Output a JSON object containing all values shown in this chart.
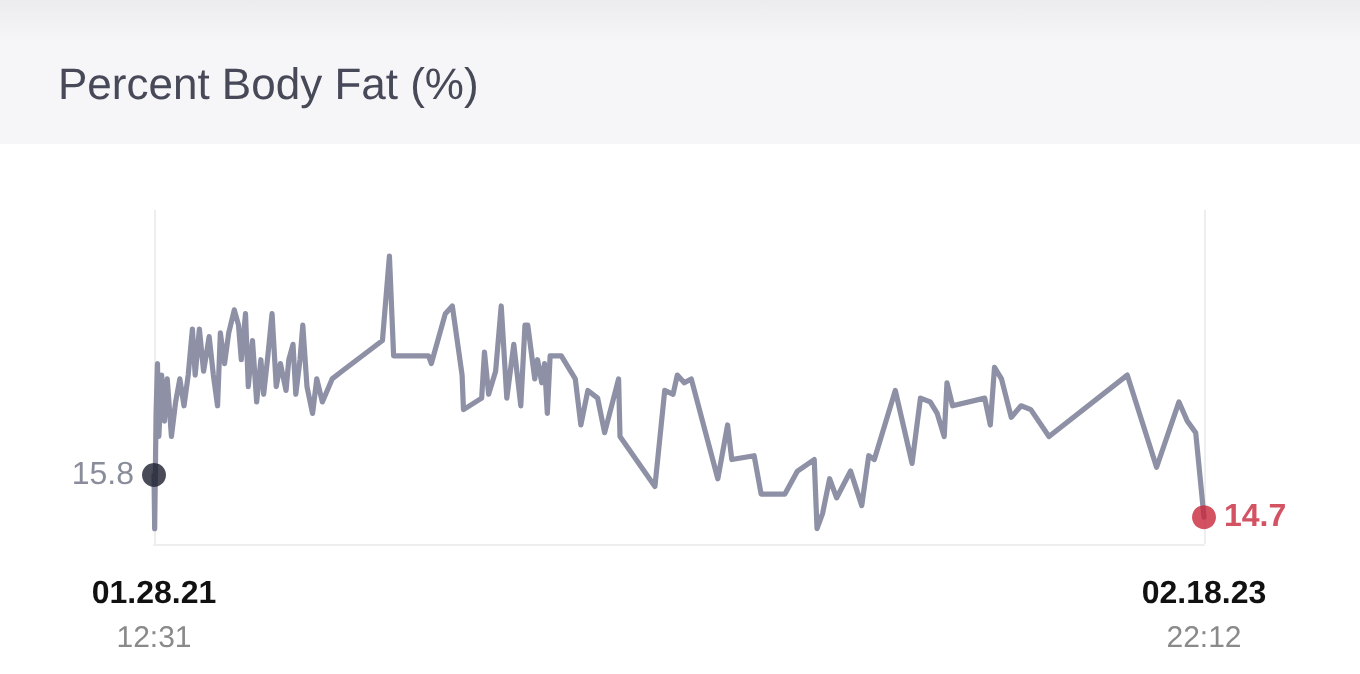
{
  "chart_data": {
    "type": "line",
    "title": "Percent Body Fat (%)",
    "x": [
      "2021-01-28T12:31",
      "2021-01-29",
      "2021-01-30",
      "2021-01-31",
      "2021-02-01",
      "2021-02-03",
      "2021-02-05",
      "2021-02-07",
      "2021-02-10",
      "2021-02-13",
      "2021-02-16",
      "2021-02-19",
      "2021-02-22",
      "2021-02-25",
      "2021-02-27",
      "2021-03-02",
      "2021-03-05",
      "2021-03-09",
      "2021-03-12",
      "2021-03-15",
      "2021-03-17",
      "2021-03-20",
      "2021-03-23",
      "2021-03-27",
      "2021-03-30",
      "2021-04-01",
      "2021-04-04",
      "2021-04-06",
      "2021-04-09",
      "2021-04-12",
      "2021-04-15",
      "2021-04-17",
      "2021-04-20",
      "2021-04-23",
      "2021-04-26",
      "2021-04-29",
      "2021-05-03",
      "2021-05-05",
      "2021-05-08",
      "2021-05-10",
      "2021-05-13",
      "2021-05-15",
      "2021-05-18",
      "2021-05-22",
      "2021-05-25",
      "2021-05-29",
      "2021-06-05",
      "2021-06-12",
      "2021-07-11",
      "2021-07-16",
      "2021-07-19",
      "2021-08-13",
      "2021-08-15",
      "2021-08-25",
      "2021-08-30",
      "2021-09-06",
      "2021-09-07",
      "2021-09-20",
      "2021-09-22",
      "2021-09-25",
      "2021-09-30",
      "2021-10-04",
      "2021-10-08",
      "2021-10-13",
      "2021-10-18",
      "2021-10-21",
      "2021-10-23",
      "2021-10-28",
      "2021-10-30",
      "2021-11-02",
      "2021-11-04",
      "2021-11-06",
      "2021-11-08",
      "2021-11-16",
      "2021-11-26",
      "2021-11-30",
      "2021-12-05",
      "2021-12-12",
      "2021-12-17",
      "2021-12-22",
      "2021-12-27",
      "2021-12-28",
      "2022-01-22",
      "2022-01-29",
      "2022-02-04",
      "2022-02-07",
      "2022-02-12",
      "2022-02-17",
      "2022-03-08",
      "2022-03-15",
      "2022-03-18",
      "2022-04-03",
      "2022-04-08",
      "2022-04-25",
      "2022-05-04",
      "2022-05-16",
      "2022-05-18",
      "2022-05-22",
      "2022-05-27",
      "2022-06-01",
      "2022-06-11",
      "2022-06-19",
      "2022-06-24",
      "2022-06-28",
      "2022-07-13",
      "2022-07-25",
      "2022-07-31",
      "2022-08-07",
      "2022-08-12",
      "2022-08-17",
      "2022-08-19",
      "2022-08-23",
      "2022-09-15",
      "2022-09-19",
      "2022-09-22",
      "2022-09-27",
      "2022-10-04",
      "2022-10-11",
      "2022-10-18",
      "2022-10-31",
      "2022-12-26",
      "2023-01-16",
      "2023-02-01",
      "2023-02-07",
      "2023-02-13",
      "2023-02-18T22:12"
    ],
    "series": [
      {
        "color": "#8e90a6",
        "marker": "none",
        "values": [
          15.8,
          14.4,
          17.4,
          18.7,
          16.8,
          18.4,
          17.2,
          18.3,
          16.8,
          17.7,
          18.3,
          17.6,
          18.4,
          19.6,
          18.4,
          19.6,
          18.5,
          19.4,
          18.4,
          17.6,
          19.5,
          18.7,
          19.5,
          20.1,
          19.7,
          18.8,
          20.0,
          18.1,
          19.3,
          17.7,
          18.8,
          17.9,
          18.9,
          20.0,
          18.1,
          18.7,
          18.0,
          18.8,
          19.2,
          17.9,
          18.8,
          19.7,
          18.1,
          17.4,
          18.3,
          17.7,
          18.3,
          18.5,
          19.3,
          21.5,
          18.9,
          18.9,
          18.7,
          20.0,
          20.2,
          18.4,
          17.5,
          17.8,
          19.0,
          17.9,
          18.5,
          20.2,
          17.8,
          19.2,
          17.6,
          19.7,
          19.7,
          18.3,
          18.8,
          18.2,
          18.7,
          17.4,
          18.9,
          18.9,
          18.3,
          17.1,
          18.0,
          17.8,
          16.9,
          17.6,
          18.3,
          16.8,
          15.5,
          18.0,
          17.9,
          18.4,
          18.2,
          18.3,
          15.7,
          17.1,
          16.2,
          16.3,
          15.3,
          15.3,
          15.9,
          16.2,
          14.4,
          14.8,
          15.7,
          15.2,
          15.9,
          15.0,
          16.3,
          16.2,
          18.0,
          16.1,
          17.8,
          17.7,
          17.4,
          16.8,
          18.2,
          17.6,
          17.8,
          17.1,
          18.6,
          18.3,
          17.3,
          17.6,
          17.5,
          16.8,
          18.4,
          16.0,
          17.7,
          17.2,
          16.9,
          14.7
        ]
      },
      {
        "type": "scatter",
        "marker": "circle",
        "color": "#1c1f2e",
        "x": [
          "2021-01-28T12:31"
        ],
        "values": [
          15.8
        ],
        "value_labels": [
          "15.8"
        ]
      },
      {
        "type": "scatter",
        "marker": "circle",
        "color": "#c8283c",
        "x": [
          "2023-02-18T22:12"
        ],
        "values": [
          14.7
        ],
        "value_labels": [
          "14.7"
        ]
      }
    ],
    "xlim": [
      "2021-01-28T12:31",
      "2023-02-18T22:12"
    ],
    "xticks": [
      {
        "value": "2021-01-28T12:31",
        "label": "01.28.21\n12:31"
      },
      {
        "value": "2023-02-18T22:12",
        "label": "02.18.23\n22:12"
      }
    ],
    "ylim": [
      14.0,
      22.7
    ],
    "tick_labels": "x",
    "grid": "x",
    "line_style": "solid"
  }
}
